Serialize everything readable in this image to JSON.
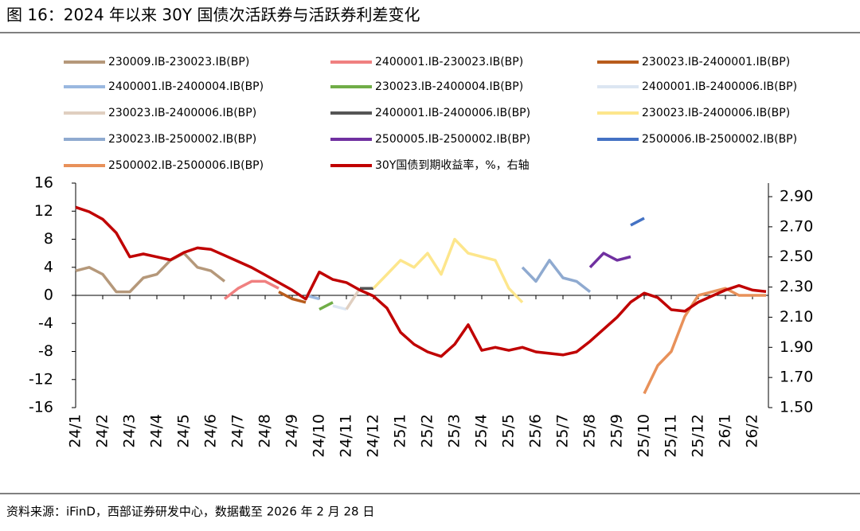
{
  "chart_data": {
    "type": "line",
    "title": "图 16：2024 年以来 30Y 国债次活跃券与活跃券利差变化",
    "source": "资料来源：iFinD，西部证券研发中心，数据截至 2026 年 2 月 28 日",
    "categories": [
      "24/1",
      null,
      "24/2",
      null,
      "24/3",
      null,
      "24/4",
      null,
      "24/5",
      null,
      "24/6",
      null,
      "24/7",
      null,
      "24/8",
      null,
      "24/9",
      null,
      "24/10",
      null,
      "24/11",
      null,
      "24/12",
      null,
      "25/1",
      null,
      "25/2",
      null,
      "25/3",
      null,
      "25/4",
      null,
      "25/5",
      null,
      "25/6",
      null,
      "25/7",
      null,
      "25/8",
      null,
      "25/9",
      null,
      "25/10",
      null,
      "25/11",
      null,
      "25/12",
      null,
      "26/1",
      null,
      "26/2",
      null
    ],
    "ylim": [
      -16,
      16
    ],
    "yticks": [
      -16,
      -12,
      -8,
      -4,
      0,
      4,
      8,
      12,
      16
    ],
    "y2lim": [
      1.5,
      2.99
    ],
    "y2ticks": [
      {
        "value": 1.5,
        "label": "1.50"
      },
      {
        "value": 1.7,
        "label": "1.70"
      },
      {
        "value": 1.9,
        "label": "1.90"
      },
      {
        "value": 2.1,
        "label": "2.10"
      },
      {
        "value": 2.3,
        "label": "2.30"
      },
      {
        "value": 2.5,
        "label": "2.50"
      },
      {
        "value": 2.7,
        "label": "2.70"
      },
      {
        "value": 2.9,
        "label": "2.90"
      }
    ],
    "legend": "top",
    "series": [
      {
        "name": "230009.IB-230023.IB(BP)",
        "color": "#b5987a",
        "values": [
          3.5,
          4,
          3,
          0.5,
          0.5,
          2.5,
          3,
          5,
          6,
          4,
          3.5,
          2,
          null,
          null,
          null,
          null,
          null,
          null,
          null,
          null,
          null,
          null,
          null,
          null,
          null,
          null,
          null,
          null,
          null,
          null,
          null,
          null,
          null,
          null,
          null,
          null,
          null,
          null,
          null,
          null,
          null,
          null,
          null,
          null,
          null,
          null,
          null,
          null,
          null,
          null,
          null,
          null
        ]
      },
      {
        "name": "2400001.IB-230023.IB(BP)",
        "color": "#f08080",
        "values": [
          null,
          null,
          null,
          null,
          null,
          null,
          null,
          null,
          null,
          null,
          null,
          -0.5,
          1,
          2,
          2,
          1,
          null,
          null,
          null,
          null,
          null,
          null,
          null,
          null,
          null,
          null,
          null,
          null,
          null,
          null,
          null,
          null,
          null,
          null,
          null,
          null,
          null,
          null,
          null,
          null,
          null,
          null,
          null,
          null,
          null,
          null,
          null,
          null,
          null,
          null,
          null,
          null
        ]
      },
      {
        "name": "230023.IB-2400001.IB(BP)",
        "color": "#b85c1c",
        "values": [
          null,
          null,
          null,
          null,
          null,
          null,
          null,
          null,
          null,
          null,
          null,
          null,
          null,
          null,
          null,
          0.5,
          -0.5,
          -1,
          null,
          null,
          null,
          null,
          null,
          null,
          null,
          null,
          null,
          null,
          null,
          null,
          null,
          null,
          null,
          null,
          null,
          null,
          null,
          null,
          null,
          null,
          null,
          null,
          null,
          null,
          null,
          null,
          null,
          null,
          null,
          null,
          null,
          null
        ]
      },
      {
        "name": "2400001.IB-2400004.IB(BP)",
        "color": "#9ab8e0",
        "values": [
          null,
          null,
          null,
          null,
          null,
          null,
          null,
          null,
          null,
          null,
          null,
          null,
          null,
          null,
          null,
          null,
          null,
          0,
          -0.5,
          null,
          null,
          null,
          null,
          null,
          null,
          null,
          null,
          null,
          null,
          null,
          null,
          null,
          null,
          null,
          null,
          null,
          null,
          null,
          null,
          null,
          null,
          null,
          null,
          null,
          null,
          null,
          null,
          null,
          null,
          null,
          null,
          null
        ]
      },
      {
        "name": "230023.IB-2400004.IB(BP)",
        "color": "#70ad47",
        "values": [
          null,
          null,
          null,
          null,
          null,
          null,
          null,
          null,
          null,
          null,
          null,
          null,
          null,
          null,
          null,
          null,
          null,
          null,
          -2,
          -1,
          null,
          null,
          null,
          null,
          null,
          null,
          null,
          null,
          null,
          null,
          null,
          null,
          null,
          null,
          null,
          null,
          null,
          null,
          null,
          null,
          null,
          null,
          null,
          null,
          null,
          null,
          null,
          null,
          null,
          null,
          null,
          null
        ]
      },
      {
        "name": "2400001.IB-2400006.IB(BP)",
        "color": "#dce6f2",
        "values": [
          null,
          null,
          null,
          null,
          null,
          null,
          null,
          null,
          null,
          null,
          null,
          null,
          null,
          null,
          null,
          null,
          null,
          null,
          null,
          -1.5,
          -2,
          null,
          null,
          null,
          null,
          null,
          null,
          null,
          null,
          null,
          null,
          null,
          null,
          null,
          null,
          null,
          null,
          null,
          null,
          null,
          null,
          null,
          null,
          null,
          null,
          null,
          null,
          null,
          null,
          null,
          null,
          null
        ]
      },
      {
        "name": "230023.IB-2400006.IB(BP)",
        "color": "#e0cfc0",
        "values": [
          null,
          null,
          null,
          null,
          null,
          null,
          null,
          null,
          null,
          null,
          null,
          null,
          null,
          null,
          null,
          null,
          null,
          null,
          null,
          null,
          -2,
          1,
          null,
          null,
          null,
          null,
          null,
          null,
          null,
          null,
          null,
          null,
          null,
          null,
          null,
          null,
          null,
          null,
          null,
          null,
          null,
          null,
          null,
          null,
          null,
          null,
          null,
          null,
          null,
          null,
          null,
          null
        ]
      },
      {
        "name": "2400001.IB-2400006.IB(BP)",
        "color": "#555555",
        "values": [
          null,
          null,
          null,
          null,
          null,
          null,
          null,
          null,
          null,
          null,
          null,
          null,
          null,
          null,
          null,
          null,
          null,
          null,
          null,
          null,
          null,
          1,
          1,
          null,
          null,
          null,
          null,
          null,
          null,
          null,
          null,
          null,
          null,
          null,
          null,
          null,
          null,
          null,
          null,
          null,
          null,
          null,
          null,
          null,
          null,
          null,
          null,
          null,
          null,
          null,
          null,
          null
        ]
      },
      {
        "name": "230023.IB-2400006.IB(BP)",
        "color": "#fde68c",
        "values": [
          null,
          null,
          null,
          null,
          null,
          null,
          null,
          null,
          null,
          null,
          null,
          null,
          null,
          null,
          null,
          null,
          null,
          null,
          null,
          null,
          null,
          null,
          1,
          3,
          5,
          4,
          6,
          3,
          8,
          6,
          5.5,
          5,
          1,
          -1,
          null,
          null,
          null,
          null,
          null,
          null,
          null,
          null,
          null,
          null,
          null,
          null,
          null,
          null,
          null,
          null,
          null,
          null
        ]
      },
      {
        "name": "230023.IB-2500002.IB(BP)",
        "color": "#8faad0",
        "values": [
          null,
          null,
          null,
          null,
          null,
          null,
          null,
          null,
          null,
          null,
          null,
          null,
          null,
          null,
          null,
          null,
          null,
          null,
          null,
          null,
          null,
          null,
          null,
          null,
          null,
          null,
          null,
          null,
          null,
          null,
          null,
          null,
          null,
          4,
          2,
          5,
          2.5,
          2,
          0.5,
          null,
          null,
          null,
          null,
          null,
          null,
          null,
          null,
          null,
          null,
          null,
          null,
          null
        ]
      },
      {
        "name": "2500005.IB-2500002.IB(BP)",
        "color": "#7030a0",
        "values": [
          null,
          null,
          null,
          null,
          null,
          null,
          null,
          null,
          null,
          null,
          null,
          null,
          null,
          null,
          null,
          null,
          null,
          null,
          null,
          null,
          null,
          null,
          null,
          null,
          null,
          null,
          null,
          null,
          null,
          null,
          null,
          null,
          null,
          null,
          null,
          null,
          null,
          null,
          4,
          6,
          5,
          5.5,
          null,
          null,
          null,
          null,
          null,
          null,
          null,
          null,
          null,
          null
        ]
      },
      {
        "name": "2500006.IB-2500002.IB(BP)",
        "color": "#4472c4",
        "values": [
          null,
          null,
          null,
          null,
          null,
          null,
          null,
          null,
          null,
          null,
          null,
          null,
          null,
          null,
          null,
          null,
          null,
          null,
          null,
          null,
          null,
          null,
          null,
          null,
          null,
          null,
          null,
          null,
          null,
          null,
          null,
          null,
          null,
          null,
          null,
          null,
          null,
          null,
          null,
          null,
          null,
          10,
          11,
          null,
          null,
          null,
          null,
          null,
          null,
          null,
          null,
          null
        ]
      },
      {
        "name": "2500002.IB-2500006.IB(BP)",
        "color": "#e8915a",
        "values": [
          null,
          null,
          null,
          null,
          null,
          null,
          null,
          null,
          null,
          null,
          null,
          null,
          null,
          null,
          null,
          null,
          null,
          null,
          null,
          null,
          null,
          null,
          null,
          null,
          null,
          null,
          null,
          null,
          null,
          null,
          null,
          null,
          null,
          null,
          null,
          null,
          null,
          null,
          null,
          null,
          null,
          null,
          -14,
          -10,
          -8,
          -3,
          0,
          0.5,
          1,
          0,
          0,
          0
        ]
      },
      {
        "name": "30Y国债到期收益率，%，右轴",
        "color": "#c00000",
        "axis": "y2",
        "values": [
          2.83,
          2.8,
          2.75,
          2.66,
          2.5,
          2.52,
          2.5,
          2.48,
          2.53,
          2.56,
          2.55,
          2.51,
          2.47,
          2.43,
          2.38,
          2.33,
          2.28,
          2.22,
          2.4,
          2.35,
          2.33,
          2.28,
          2.24,
          2.16,
          2.0,
          1.92,
          1.87,
          1.84,
          1.92,
          2.05,
          1.88,
          1.9,
          1.88,
          1.9,
          1.87,
          1.86,
          1.85,
          1.87,
          1.94,
          2.02,
          2.1,
          2.2,
          2.26,
          2.23,
          2.15,
          2.14,
          2.2,
          2.24,
          2.28,
          2.31,
          2.28,
          2.27
        ]
      }
    ]
  }
}
